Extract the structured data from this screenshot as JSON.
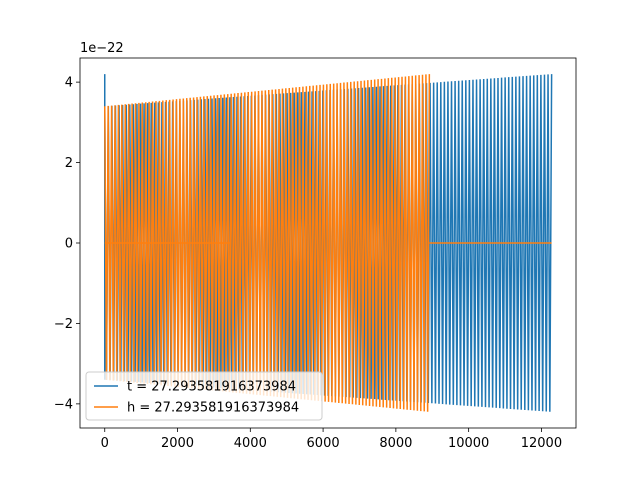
{
  "chart_data": {
    "type": "line",
    "title": "",
    "xlabel": "",
    "ylabel": "",
    "y_offset_label": "1e−22",
    "xlim": [
      -680,
      12950
    ],
    "ylim": [
      -4.6,
      4.6
    ],
    "x_ticks": [
      0,
      2000,
      4000,
      6000,
      8000,
      10000,
      12000
    ],
    "x_tick_labels": [
      "0",
      "2000",
      "4000",
      "6000",
      "8000",
      "10000",
      "12000"
    ],
    "y_ticks": [
      -4,
      -2,
      0,
      2,
      4
    ],
    "y_tick_labels": [
      "−4",
      "−2",
      "0",
      "2",
      "4"
    ],
    "grid": false,
    "legend_position": "lower-left",
    "series": [
      {
        "name": "t = 27.293581916373984",
        "color": "#1f77b4",
        "segments": [
          {
            "x_start": 0,
            "x_end": 12280,
            "amp_start": 3.4,
            "amp_end": 4.2,
            "cycles": 125,
            "shape": "oscillation"
          }
        ],
        "initial_spike": {
          "x": 0,
          "y_top": 4.2,
          "y_bottom": -3.4
        }
      },
      {
        "name": "h = 27.293581916373984",
        "color": "#ff7f0e",
        "segments": [
          {
            "x_start": 0,
            "x_end": 130,
            "shape": "flat",
            "value": 0
          },
          {
            "x_start": 130,
            "x_end": 3450,
            "shape": "flat",
            "value": 0
          },
          {
            "x_start": 0,
            "x_end": 8920,
            "amp_start": 3.4,
            "amp_end": 4.2,
            "cycles": 95,
            "shape": "oscillation"
          },
          {
            "x_start": 8920,
            "x_end": 12280,
            "shape": "flat",
            "value": 0
          }
        ]
      }
    ]
  }
}
